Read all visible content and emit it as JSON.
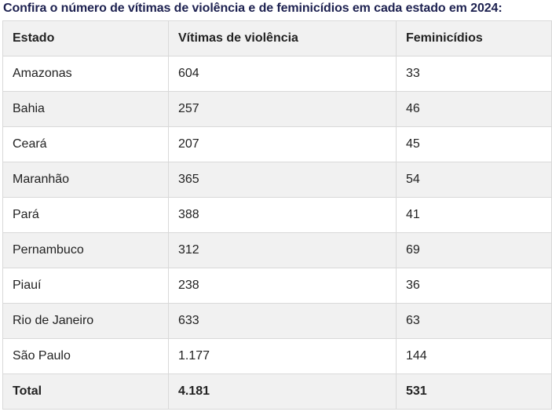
{
  "caption": "Confira o número de vítimas de violência e de feminicídios em cada estado em 2024:",
  "table": {
    "headers": [
      "Estado",
      "Vítimas de violência",
      "Feminicídios"
    ],
    "rows": [
      [
        "Amazonas",
        "604",
        "33"
      ],
      [
        "Bahia",
        "257",
        "46"
      ],
      [
        "Ceará",
        "207",
        "45"
      ],
      [
        "Maranhão",
        "365",
        "54"
      ],
      [
        "Pará",
        "388",
        "41"
      ],
      [
        "Pernambuco",
        "312",
        "69"
      ],
      [
        "Piauí",
        "238",
        "36"
      ],
      [
        "Rio de Janeiro",
        "633",
        "63"
      ],
      [
        "São Paulo",
        "1.177",
        "144"
      ]
    ],
    "total": [
      "Total",
      "4.181",
      "531"
    ]
  }
}
